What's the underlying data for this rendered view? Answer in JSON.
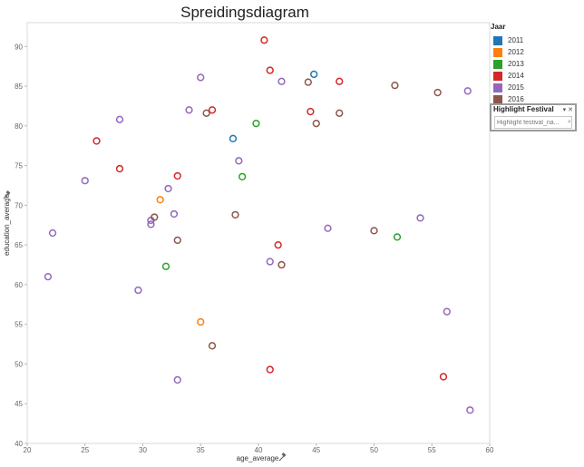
{
  "chart_data": {
    "type": "scatter",
    "title": "Spreidingsdiagram",
    "xlabel": "age_average",
    "ylabel": "education_average",
    "xlim": [
      20,
      60
    ],
    "ylim": [
      40,
      93
    ],
    "xticks": [
      "20",
      "25",
      "30",
      "35",
      "40",
      "45",
      "50",
      "55",
      "60"
    ],
    "yticks": [
      "40",
      "45",
      "50",
      "55",
      "60",
      "65",
      "70",
      "75",
      "80",
      "85",
      "90"
    ],
    "marker": "hollow-circle",
    "grid": false,
    "legend_position": "right",
    "series": [
      {
        "name": "2011",
        "color": "#1f77b4",
        "points": [
          [
            37.8,
            78.4
          ],
          [
            44.8,
            86.5
          ]
        ]
      },
      {
        "name": "2012",
        "color": "#ff7f0e",
        "points": [
          [
            31.5,
            70.7
          ],
          [
            35.0,
            55.3
          ]
        ]
      },
      {
        "name": "2013",
        "color": "#2ca02c",
        "points": [
          [
            38.6,
            73.6
          ],
          [
            39.8,
            80.3
          ],
          [
            32.0,
            62.3
          ],
          [
            52.0,
            66.0
          ]
        ]
      },
      {
        "name": "2014",
        "color": "#d62728",
        "points": [
          [
            40.5,
            90.8
          ],
          [
            41.0,
            87.0
          ],
          [
            36.0,
            82.0
          ],
          [
            44.5,
            81.8
          ],
          [
            26.0,
            78.1
          ],
          [
            28.0,
            74.6
          ],
          [
            33.0,
            73.7
          ],
          [
            41.7,
            65.0
          ],
          [
            41.0,
            49.3
          ],
          [
            56.0,
            48.4
          ],
          [
            47.0,
            85.6
          ]
        ]
      },
      {
        "name": "2015",
        "color": "#9467bd",
        "points": [
          [
            35.0,
            86.1
          ],
          [
            42.0,
            85.6
          ],
          [
            28.0,
            80.8
          ],
          [
            34.0,
            82.0
          ],
          [
            38.3,
            75.6
          ],
          [
            25.0,
            73.1
          ],
          [
            32.2,
            72.1
          ],
          [
            32.7,
            68.9
          ],
          [
            30.7,
            67.6
          ],
          [
            30.7,
            68.1
          ],
          [
            22.2,
            66.5
          ],
          [
            21.8,
            61.0
          ],
          [
            29.6,
            59.3
          ],
          [
            41.0,
            62.9
          ],
          [
            46.0,
            67.1
          ],
          [
            54.0,
            68.4
          ],
          [
            56.3,
            56.6
          ],
          [
            58.3,
            44.2
          ],
          [
            33.0,
            48.0
          ],
          [
            58.1,
            84.4
          ]
        ]
      },
      {
        "name": "2016",
        "color": "#8c564b",
        "points": [
          [
            35.5,
            81.6
          ],
          [
            44.3,
            85.5
          ],
          [
            47.0,
            81.6
          ],
          [
            45.0,
            80.3
          ],
          [
            51.8,
            85.1
          ],
          [
            55.5,
            84.2
          ],
          [
            31.0,
            68.5
          ],
          [
            33.0,
            65.6
          ],
          [
            38.0,
            68.8
          ],
          [
            50.0,
            66.8
          ],
          [
            42.0,
            62.5
          ],
          [
            36.0,
            52.3
          ]
        ]
      }
    ]
  },
  "legend": {
    "title": "Jaar"
  },
  "highlight": {
    "title": "Highlight Festival",
    "placeholder": "Highlight festival_na...",
    "controls": "▾ ✕",
    "search_glyph": "⌕"
  }
}
